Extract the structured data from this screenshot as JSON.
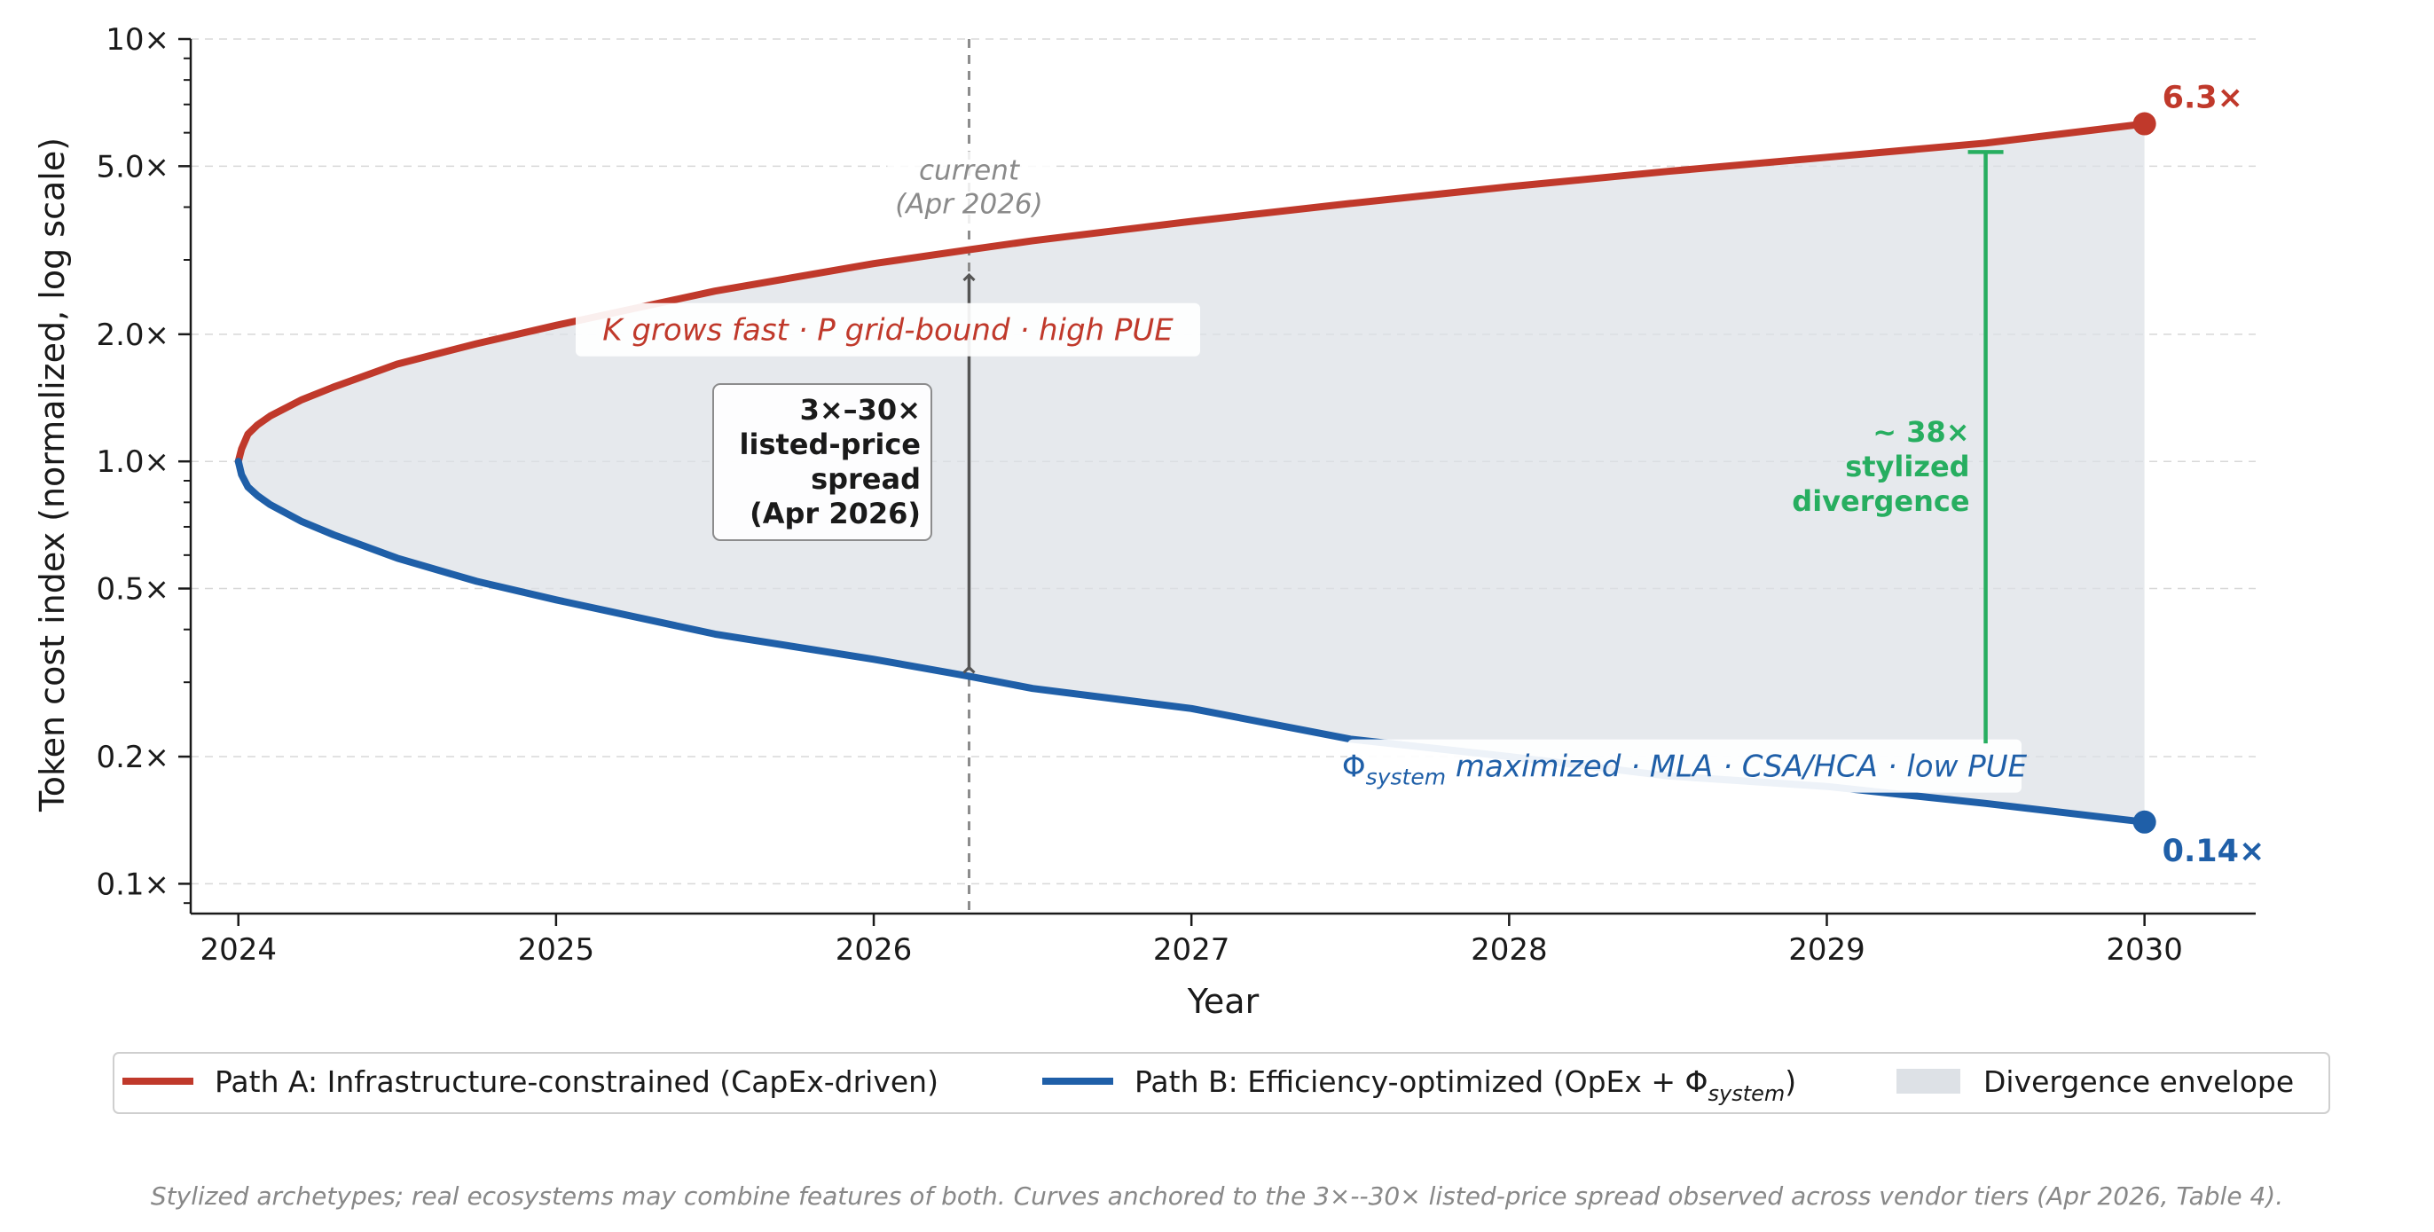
{
  "chart_data": {
    "type": "line",
    "title": "",
    "xlabel": "Year",
    "ylabel": "Token cost index  (normalized, log scale)",
    "yscale": "log",
    "xlim": [
      2023.85,
      2030.35
    ],
    "ylim": [
      0.085,
      10
    ],
    "x_ticks": [
      2024,
      2025,
      2026,
      2027,
      2028,
      2029,
      2030
    ],
    "x_tick_labels": [
      "2024",
      "2025",
      "2026",
      "2027",
      "2028",
      "2029",
      "2030"
    ],
    "y_ticks": [
      0.1,
      0.2,
      0.5,
      1,
      2,
      5,
      10
    ],
    "y_tick_labels": [
      "0.1×",
      "0.2×",
      "0.5×",
      "1.0×",
      "2.0×",
      "5.0×",
      "10×"
    ],
    "grid": true,
    "series": [
      {
        "name": "Path A: Infrastructure-constrained (CapEx-driven)",
        "color": "#c0392b",
        "x": [
          2024.0,
          2024.01,
          2024.03,
          2024.06,
          2024.1,
          2024.2,
          2024.3,
          2024.5,
          2024.75,
          2025.0,
          2025.5,
          2026.0,
          2026.3,
          2026.5,
          2027.0,
          2027.5,
          2028.0,
          2028.5,
          2029.0,
          2029.5,
          2030.0
        ],
        "values": [
          1.0,
          1.07,
          1.16,
          1.22,
          1.28,
          1.4,
          1.5,
          1.7,
          1.9,
          2.1,
          2.53,
          2.94,
          3.17,
          3.33,
          3.7,
          4.08,
          4.47,
          4.86,
          5.25,
          5.67,
          6.3
        ],
        "end_label": "6.3×"
      },
      {
        "name": "Path B: Efficiency-optimized (OpEx + Φsystem)",
        "color": "#1f5fa8",
        "x": [
          2024.0,
          2024.01,
          2024.03,
          2024.06,
          2024.1,
          2024.2,
          2024.3,
          2024.5,
          2024.75,
          2025.0,
          2025.5,
          2026.0,
          2026.3,
          2026.5,
          2027.0,
          2027.5,
          2028.0,
          2028.5,
          2029.0,
          2029.5,
          2030.0
        ],
        "values": [
          1.0,
          0.93,
          0.87,
          0.83,
          0.79,
          0.72,
          0.67,
          0.59,
          0.52,
          0.47,
          0.39,
          0.34,
          0.31,
          0.29,
          0.26,
          0.22,
          0.2,
          0.18,
          0.17,
          0.155,
          0.14
        ],
        "end_label": "0.14×"
      }
    ],
    "envelope": {
      "name": "Divergence envelope",
      "color": "#dde1e6"
    },
    "annotations": {
      "current_line_x": 2026.3,
      "current_line_text_1": "current",
      "current_line_text_2": "(Apr 2026)",
      "path_a_label": "K grows fast · P grid-bound · high PUE",
      "path_b_label_prefix": "Φ",
      "path_b_label_sub": "system",
      "path_b_label_rest": " maximized · MLA · CSA/HCA · low PUE",
      "spread_arrow": {
        "x": 2026.3,
        "y_top": 2.9,
        "y_bottom": 0.31
      },
      "spread_box_lines": [
        "3×–30×",
        "listed-price",
        "spread",
        "(Apr 2026)"
      ],
      "divergence_bar": {
        "x": 2029.5,
        "y_top": 5.4,
        "y_bottom": 0.215,
        "color": "#27ae60"
      },
      "divergence_lines": [
        "~ 38×",
        "stylized",
        "divergence"
      ]
    },
    "legend_position": "bottom-center",
    "legend": [
      {
        "kind": "line",
        "color": "#c0392b",
        "label": "Path A: Infrastructure-constrained (CapEx-driven)"
      },
      {
        "kind": "line",
        "color": "#1f5fa8",
        "label_prefix": "Path B: Efficiency-optimized (OpEx + Φ",
        "label_sub": "system",
        "label_suffix": ")"
      },
      {
        "kind": "patch",
        "color": "#dde1e6",
        "label": "Divergence envelope"
      }
    ],
    "footnote": "Stylized archetypes; real ecosystems may combine features of both. Curves anchored to the 3×--30× listed-price spread observed across vendor tiers (Apr 2026, Table 4)."
  }
}
